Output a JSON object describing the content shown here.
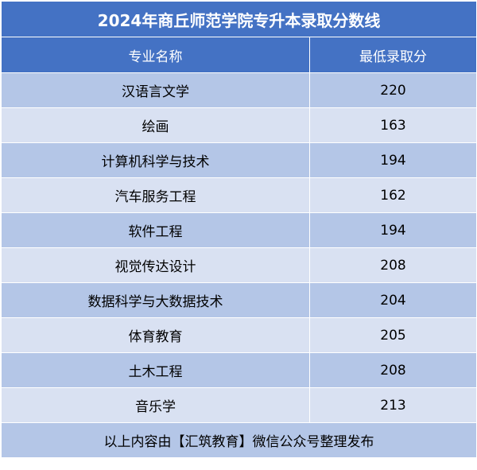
{
  "title": "2024年商丘师范学院专升本录取分数线",
  "columns": [
    "专业名称",
    "最低录取分"
  ],
  "rows": [
    {
      "major": "汉语言文学",
      "score": "220"
    },
    {
      "major": "绘画",
      "score": "163"
    },
    {
      "major": "计算机科学与技术",
      "score": "194"
    },
    {
      "major": "汽车服务工程",
      "score": "162"
    },
    {
      "major": "软件工程",
      "score": "194"
    },
    {
      "major": "视觉传达设计",
      "score": "208"
    },
    {
      "major": "数据科学与大数据技术",
      "score": "204"
    },
    {
      "major": "体育教育",
      "score": "205"
    },
    {
      "major": "土木工程",
      "score": "208"
    },
    {
      "major": "音乐学",
      "score": "213"
    }
  ],
  "footer": "以上内容由【汇筑教育】微信公众号整理发布",
  "colors": {
    "header_bg": "#4472c4",
    "row_dark": "#b4c6e7",
    "row_light": "#d9e1f2"
  }
}
